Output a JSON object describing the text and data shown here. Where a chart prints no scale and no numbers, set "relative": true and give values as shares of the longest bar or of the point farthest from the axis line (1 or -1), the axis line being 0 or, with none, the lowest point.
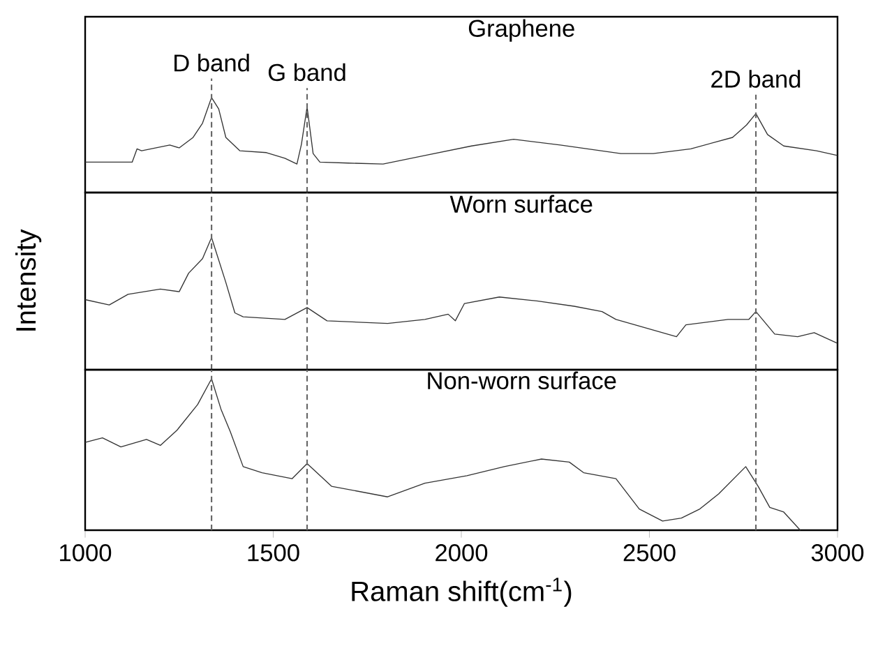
{
  "chart_data": [
    {
      "type": "line",
      "title": "Graphene",
      "relative": true,
      "color": "#333333",
      "xlim": [
        1000,
        3000
      ],
      "tick_labels": false,
      "x": [
        1000,
        1125,
        1138,
        1150,
        1225,
        1250,
        1287,
        1312,
        1336,
        1355,
        1374,
        1411,
        1482,
        1531,
        1563,
        1575,
        1590,
        1606,
        1624,
        1699,
        1792,
        1903,
        2027,
        2139,
        2263,
        2424,
        2510,
        2610,
        2721,
        2758,
        2783,
        2814,
        2857,
        2944,
        3000
      ],
      "values": [
        0.32,
        0.32,
        0.46,
        0.44,
        0.5,
        0.47,
        0.58,
        0.73,
        1.0,
        0.88,
        0.58,
        0.44,
        0.42,
        0.36,
        0.3,
        0.51,
        0.9,
        0.41,
        0.32,
        0.31,
        0.3,
        0.39,
        0.49,
        0.56,
        0.5,
        0.41,
        0.41,
        0.46,
        0.58,
        0.71,
        0.83,
        0.61,
        0.49,
        0.44,
        0.39
      ],
      "ref_lines": [
        {
          "axis": "x",
          "value": 1336,
          "label": "D band",
          "color": "#666666",
          "line_style": "dashed"
        },
        {
          "axis": "x",
          "value": 1590,
          "label": "G band",
          "color": "#666666",
          "line_style": "dashed"
        },
        {
          "axis": "x",
          "value": 2783,
          "label": "2D band",
          "color": "#666666",
          "line_style": "dashed"
        }
      ]
    },
    {
      "type": "line",
      "title": "Worn surface",
      "ylabel": "Intensity",
      "relative": true,
      "color": "#333333",
      "xlim": [
        1000,
        3000
      ],
      "tick_labels": false,
      "x": [
        1000,
        1064,
        1114,
        1200,
        1250,
        1275,
        1312,
        1336,
        1374,
        1398,
        1420,
        1531,
        1590,
        1643,
        1804,
        1903,
        1965,
        1984,
        2008,
        2101,
        2201,
        2300,
        2374,
        2411,
        2572,
        2597,
        2709,
        2764,
        2783,
        2833,
        2894,
        2938,
        3000
      ],
      "values": [
        0.53,
        0.49,
        0.57,
        0.61,
        0.59,
        0.73,
        0.84,
        1.0,
        0.66,
        0.43,
        0.4,
        0.38,
        0.47,
        0.37,
        0.35,
        0.38,
        0.42,
        0.37,
        0.5,
        0.55,
        0.52,
        0.48,
        0.44,
        0.38,
        0.25,
        0.34,
        0.38,
        0.38,
        0.44,
        0.27,
        0.25,
        0.28,
        0.2
      ],
      "ref_lines": [
        {
          "axis": "x",
          "value": 1336,
          "color": "#666666",
          "line_style": "dashed"
        },
        {
          "axis": "x",
          "value": 1590,
          "color": "#666666",
          "line_style": "dashed"
        },
        {
          "axis": "x",
          "value": 2783,
          "color": "#666666",
          "line_style": "dashed"
        }
      ]
    },
    {
      "type": "line",
      "title": "Non-worn surface",
      "xlabel": "Raman shift(cm$^{-1}$)",
      "relative": true,
      "color": "#333333",
      "xlim": [
        1000,
        3000
      ],
      "xticks": [
        1000,
        1500,
        2000,
        2500,
        3000
      ],
      "tick_labels": "x",
      "x": [
        1000,
        1046,
        1095,
        1163,
        1200,
        1244,
        1299,
        1336,
        1361,
        1386,
        1420,
        1470,
        1550,
        1590,
        1655,
        1804,
        1903,
        2015,
        2114,
        2213,
        2287,
        2325,
        2411,
        2473,
        2535,
        2585,
        2634,
        2684,
        2756,
        2789,
        2820,
        2857,
        2901
      ],
      "values": [
        0.58,
        0.61,
        0.55,
        0.6,
        0.56,
        0.66,
        0.83,
        1.0,
        0.8,
        0.65,
        0.42,
        0.38,
        0.34,
        0.44,
        0.29,
        0.22,
        0.31,
        0.36,
        0.42,
        0.47,
        0.45,
        0.38,
        0.34,
        0.14,
        0.06,
        0.08,
        0.14,
        0.24,
        0.42,
        0.29,
        0.15,
        0.12,
        0.0
      ],
      "ref_lines": [
        {
          "axis": "x",
          "value": 1336,
          "color": "#666666",
          "line_style": "dashed"
        },
        {
          "axis": "x",
          "value": 1590,
          "color": "#666666",
          "line_style": "dashed"
        },
        {
          "axis": "x",
          "value": 2783,
          "color": "#666666",
          "line_style": "dashed"
        }
      ]
    }
  ]
}
